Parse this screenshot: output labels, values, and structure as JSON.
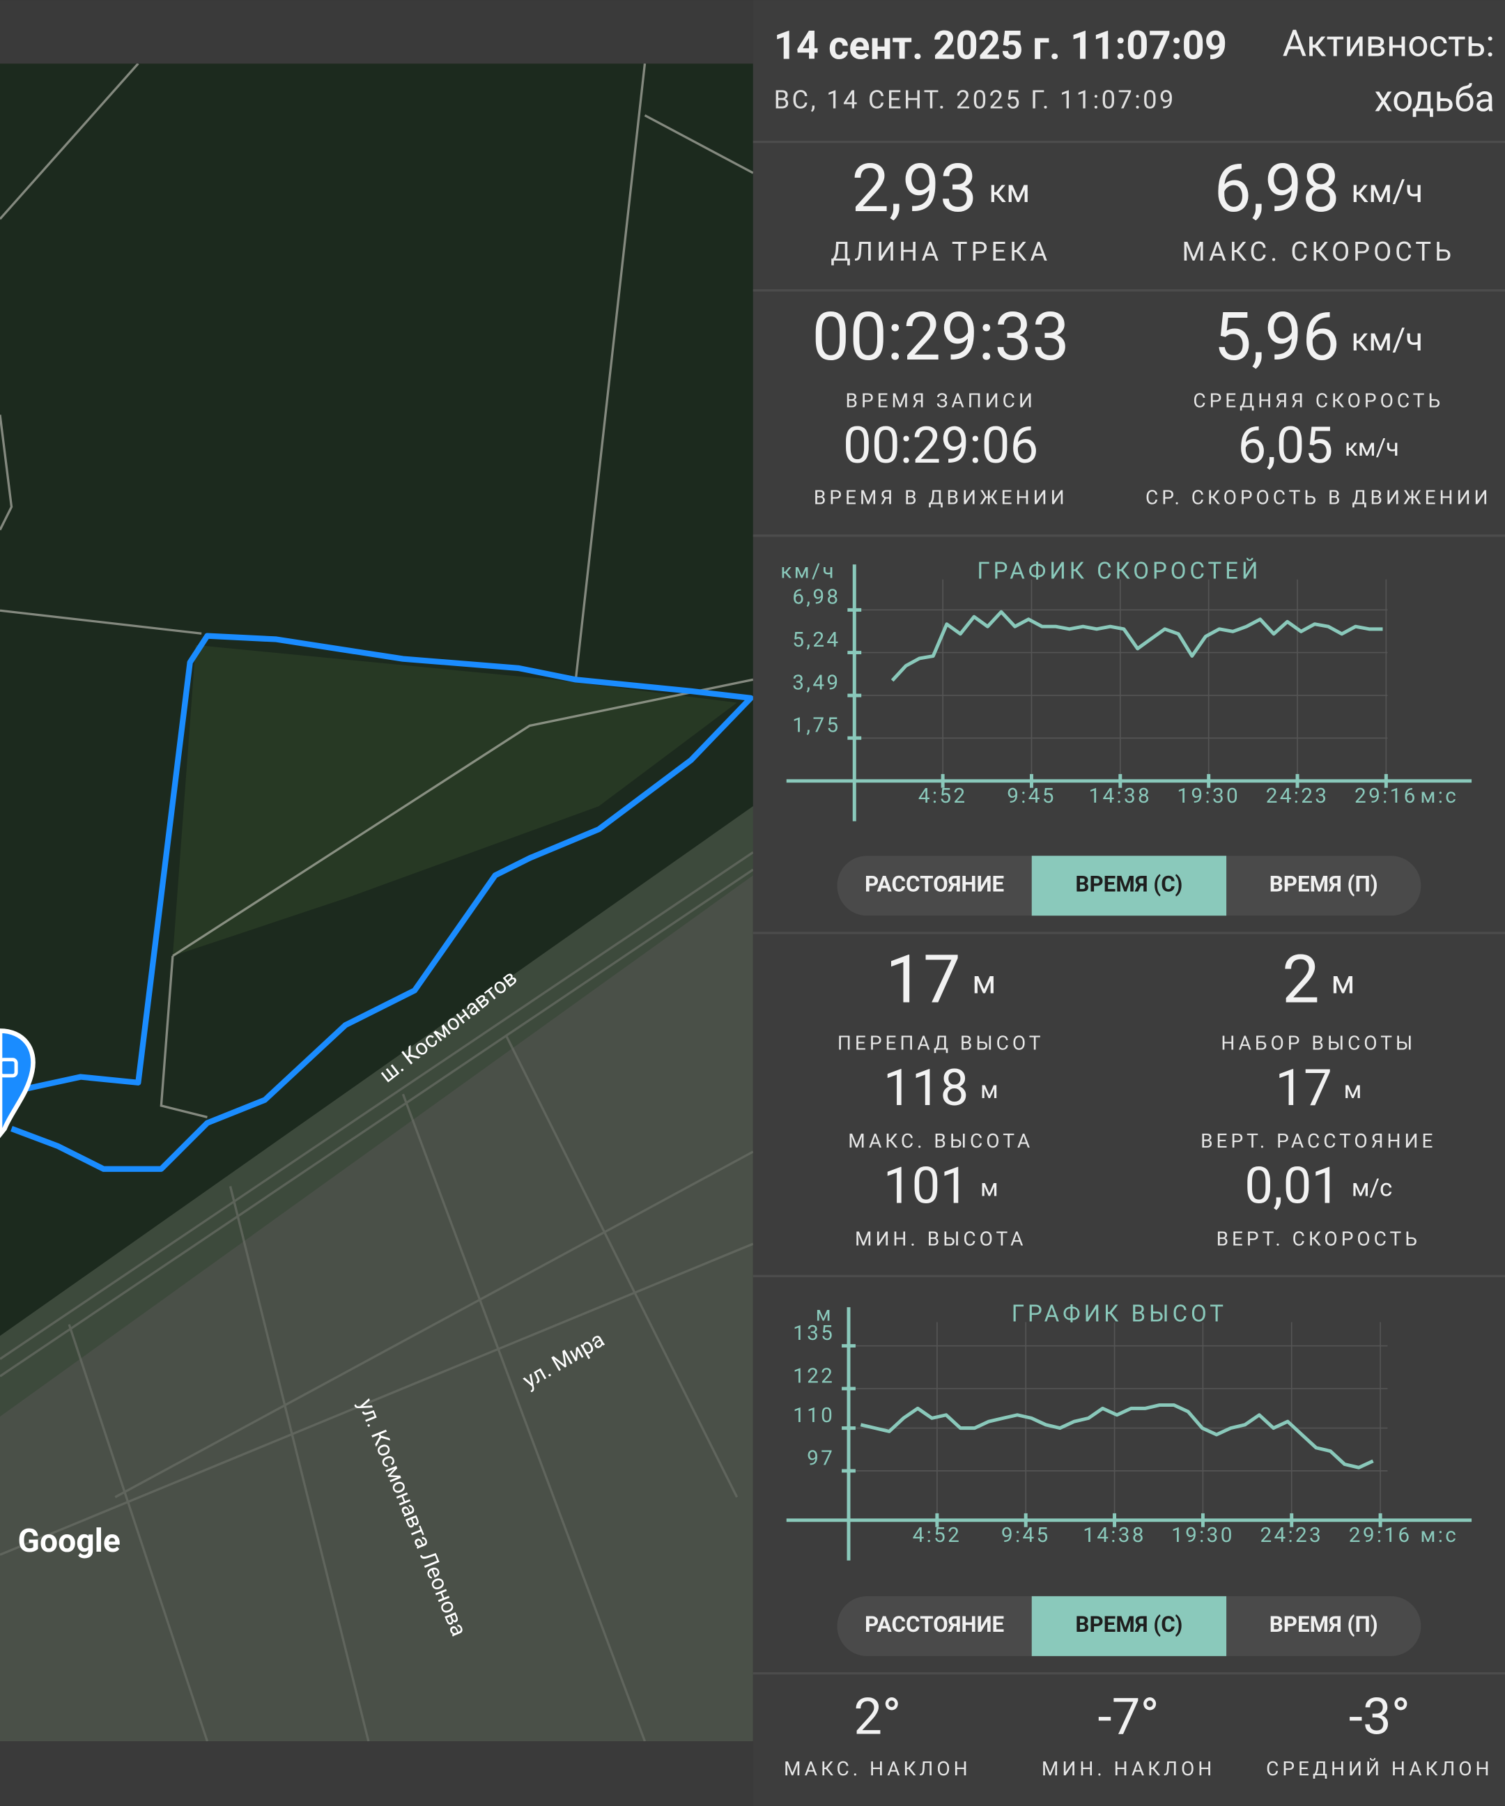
{
  "header": {
    "date": "14 сент. 2025 г. 11:07:09",
    "subdate": "ВС, 14 СЕНТ. 2025 Г. 11:07:09",
    "activity_label": "Активность:",
    "activity": "ходьба"
  },
  "map": {
    "labels": [
      "ш. Космонавтов",
      "ул. Мира",
      "ул. Космонавта Леонова"
    ],
    "attribution": "Google"
  },
  "stats_top": [
    {
      "value": "2,93",
      "unit": "км",
      "label": "ДЛИНА ТРЕКА"
    },
    {
      "value": "6,98",
      "unit": "км/ч",
      "label": "МАКС. СКОРОСТЬ"
    }
  ],
  "stats_time": [
    {
      "value": "00:29:33",
      "unit": "",
      "label": "ВРЕМЯ ЗАПИСИ"
    },
    {
      "value": "5,96",
      "unit": "км/ч",
      "label": "СРЕДНЯЯ СКОРОСТЬ"
    },
    {
      "value": "00:29:06",
      "unit": "",
      "label": "ВРЕМЯ В ДВИЖЕНИИ"
    },
    {
      "value": "6,05",
      "unit": "км/ч",
      "label": "СР. СКОРОСТЬ В ДВИЖЕНИИ"
    }
  ],
  "speed_chart": {
    "type": "line",
    "title": "ГРАФИК СКОРОСТЕЙ",
    "y_unit": "км/ч",
    "x_unit": "м:с",
    "color": "#8ac9bb",
    "xlim": [
      0,
      2027
    ],
    "ylim": [
      0,
      8.6
    ],
    "xticks": [
      {
        "value": 292,
        "label": "4:52"
      },
      {
        "value": 585,
        "label": "9:45"
      },
      {
        "value": 878,
        "label": "14:38"
      },
      {
        "value": 1170,
        "label": "19:30"
      },
      {
        "value": 1463,
        "label": "24:23"
      },
      {
        "value": 1756,
        "label": "29:16"
      }
    ],
    "yticks": [
      {
        "value": 1.75,
        "label": "1,75"
      },
      {
        "value": 3.49,
        "label": "3,49"
      },
      {
        "value": 5.24,
        "label": "5,24"
      },
      {
        "value": 6.98,
        "label": "6,98"
      }
    ],
    "x": [
      125,
      170,
      215,
      260,
      305,
      350,
      395,
      440,
      485,
      530,
      575,
      620,
      665,
      710,
      755,
      800,
      845,
      890,
      935,
      980,
      1025,
      1070,
      1115,
      1160,
      1205,
      1250,
      1295,
      1340,
      1385,
      1430,
      1475,
      1520,
      1565,
      1610,
      1655,
      1700,
      1745
    ],
    "values": [
      4.1,
      4.7,
      5.0,
      5.1,
      6.4,
      6.0,
      6.7,
      6.3,
      6.9,
      6.3,
      6.6,
      6.3,
      6.3,
      6.2,
      6.3,
      6.2,
      6.3,
      6.2,
      5.4,
      5.8,
      6.2,
      6.0,
      5.1,
      5.9,
      6.2,
      6.1,
      6.3,
      6.6,
      6.0,
      6.5,
      6.1,
      6.4,
      6.3,
      6.0,
      6.3,
      6.2,
      6.2
    ],
    "toggles": [
      "РАССТОЯНИЕ",
      "ВРЕМЯ (С)",
      "ВРЕМЯ (П)"
    ]
  },
  "stats_elevation": [
    {
      "value": "17",
      "unit": "м",
      "label": "ПЕРЕПАД ВЫСОТ"
    },
    {
      "value": "2",
      "unit": "м",
      "label": "НАБОР ВЫСОТЫ"
    },
    {
      "value": "118",
      "unit": "м",
      "label": "МАКС. ВЫСОТА"
    },
    {
      "value": "17",
      "unit": "м",
      "label": "ВЕРТ. РАССТОЯНИЕ"
    },
    {
      "value": "101",
      "unit": "м",
      "label": "МИН. ВЫСОТА"
    },
    {
      "value": "0,01",
      "unit": "м/с",
      "label": "ВЕРТ. СКОРОСТЬ"
    }
  ],
  "elevation_chart": {
    "type": "line",
    "title": "ГРАФИК ВЫСОТ",
    "y_unit": "м",
    "x_unit": "м:с",
    "color": "#8ac9bb",
    "xlim": [
      0,
      2027
    ],
    "ylim": [
      82,
      145
    ],
    "xticks": [
      {
        "value": 292,
        "label": "4:52"
      },
      {
        "value": 585,
        "label": "9:45"
      },
      {
        "value": 878,
        "label": "14:38"
      },
      {
        "value": 1170,
        "label": "19:30"
      },
      {
        "value": 1463,
        "label": "24:23"
      },
      {
        "value": 1756,
        "label": "29:16"
      }
    ],
    "yticks": [
      97,
      110,
      122,
      135
    ],
    "x": [
      40,
      87,
      134,
      181,
      228,
      275,
      322,
      369,
      416,
      463,
      510,
      557,
      604,
      651,
      698,
      745,
      792,
      839,
      886,
      933,
      980,
      1027,
      1074,
      1121,
      1168,
      1215,
      1262,
      1309,
      1356,
      1403,
      1450,
      1497,
      1544,
      1591,
      1638,
      1685,
      1732
    ],
    "values": [
      111,
      110,
      109,
      113,
      116,
      113,
      114,
      110,
      110,
      112,
      113,
      114,
      113,
      111,
      110,
      112,
      113,
      116,
      114,
      116,
      116,
      117,
      117,
      115,
      110,
      108,
      110,
      111,
      114,
      110,
      112,
      108,
      104,
      103,
      99,
      98,
      100
    ],
    "toggles": [
      "РАССТОЯНИЕ",
      "ВРЕМЯ (С)",
      "ВРЕМЯ (П)"
    ]
  },
  "slopes": [
    {
      "value": "2°",
      "label": "МАКС. НАКЛОН"
    },
    {
      "value": "-7°",
      "label": "МИН. НАКЛОН"
    },
    {
      "value": "-3°",
      "label": "СРЕДНИЙ НАКЛОН"
    }
  ]
}
